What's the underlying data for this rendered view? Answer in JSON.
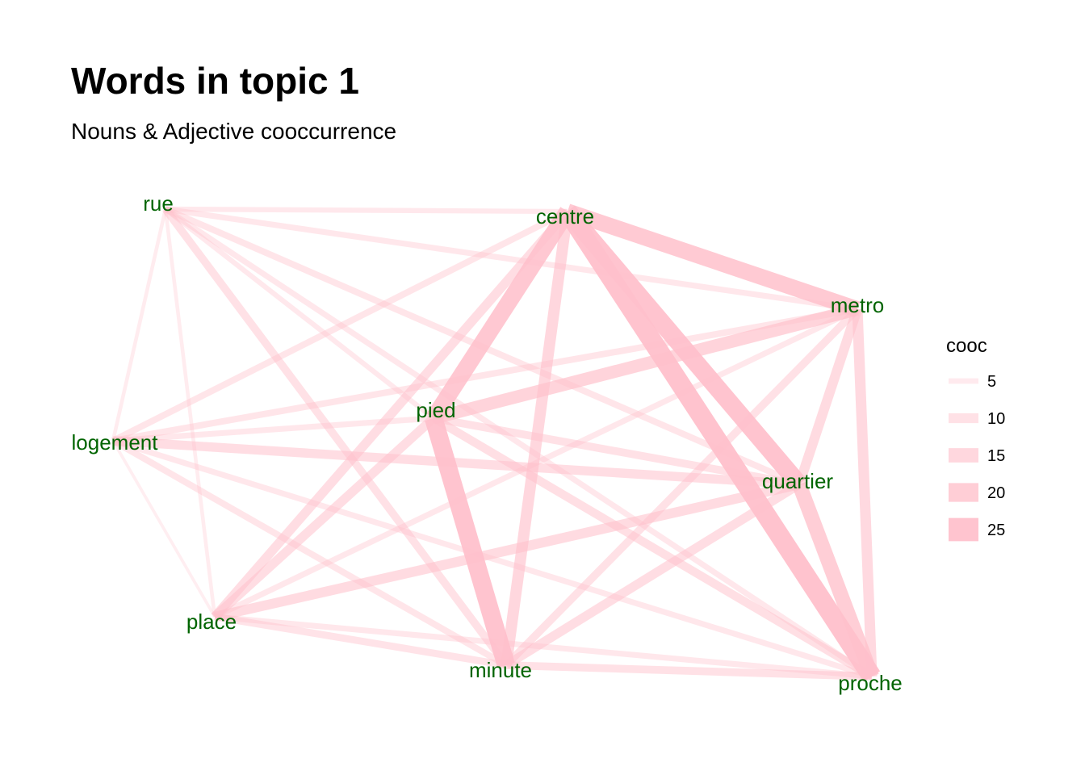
{
  "title": "Words in topic 1",
  "subtitle": "Nouns & Adjective cooccurrence",
  "colors": {
    "edge": "#ffc0cb",
    "label": "#006400"
  },
  "chart_data": {
    "type": "network",
    "nodes": [
      {
        "id": "rue",
        "label": "rue"
      },
      {
        "id": "centre",
        "label": "centre"
      },
      {
        "id": "metro",
        "label": "metro"
      },
      {
        "id": "pied",
        "label": "pied"
      },
      {
        "id": "logement",
        "label": "logement"
      },
      {
        "id": "quartier",
        "label": "quartier"
      },
      {
        "id": "place",
        "label": "place"
      },
      {
        "id": "minute",
        "label": "minute"
      },
      {
        "id": "proche",
        "label": "proche"
      }
    ],
    "edges": [
      {
        "from": "centre",
        "to": "proche",
        "cooc": 27
      },
      {
        "from": "centre",
        "to": "quartier",
        "cooc": 25
      },
      {
        "from": "pied",
        "to": "minute",
        "cooc": 25
      },
      {
        "from": "centre",
        "to": "pied",
        "cooc": 23
      },
      {
        "from": "centre",
        "to": "metro",
        "cooc": 22
      },
      {
        "from": "quartier",
        "to": "proche",
        "cooc": 20
      },
      {
        "from": "pied",
        "to": "metro",
        "cooc": 17
      },
      {
        "from": "centre",
        "to": "minute",
        "cooc": 15
      },
      {
        "from": "metro",
        "to": "proche",
        "cooc": 14
      },
      {
        "from": "metro",
        "to": "quartier",
        "cooc": 13
      },
      {
        "from": "place",
        "to": "quartier",
        "cooc": 13
      },
      {
        "from": "logement",
        "to": "quartier",
        "cooc": 12
      },
      {
        "from": "place",
        "to": "centre",
        "cooc": 12
      },
      {
        "from": "place",
        "to": "pied",
        "cooc": 12
      },
      {
        "from": "minute",
        "to": "quartier",
        "cooc": 12
      },
      {
        "from": "pied",
        "to": "proche",
        "cooc": 11
      },
      {
        "from": "pied",
        "to": "quartier",
        "cooc": 10
      },
      {
        "from": "rue",
        "to": "minute",
        "cooc": 10
      },
      {
        "from": "minute",
        "to": "metro",
        "cooc": 10
      },
      {
        "from": "minute",
        "to": "proche",
        "cooc": 10
      },
      {
        "from": "place",
        "to": "minute",
        "cooc": 9
      },
      {
        "from": "logement",
        "to": "centre",
        "cooc": 8
      },
      {
        "from": "logement",
        "to": "metro",
        "cooc": 8
      },
      {
        "from": "rue",
        "to": "quartier",
        "cooc": 8
      },
      {
        "from": "logement",
        "to": "minute",
        "cooc": 8
      },
      {
        "from": "rue",
        "to": "metro",
        "cooc": 7
      },
      {
        "from": "logement",
        "to": "pied",
        "cooc": 7
      },
      {
        "from": "rue",
        "to": "proche",
        "cooc": 7
      },
      {
        "from": "logement",
        "to": "proche",
        "cooc": 7
      },
      {
        "from": "place",
        "to": "proche",
        "cooc": 7
      },
      {
        "from": "place",
        "to": "metro",
        "cooc": 7
      },
      {
        "from": "rue",
        "to": "pied",
        "cooc": 6
      },
      {
        "from": "rue",
        "to": "centre",
        "cooc": 6
      },
      {
        "from": "rue",
        "to": "logement",
        "cooc": 4
      },
      {
        "from": "rue",
        "to": "place",
        "cooc": 4
      },
      {
        "from": "logement",
        "to": "place",
        "cooc": 3
      }
    ],
    "legend": {
      "title": "cooc",
      "entries": [
        5,
        10,
        15,
        20,
        25
      ]
    }
  }
}
